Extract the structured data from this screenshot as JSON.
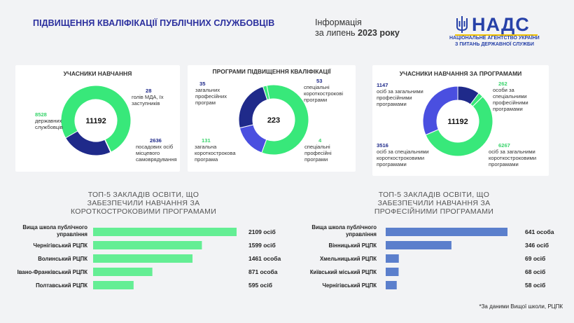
{
  "header": {
    "title": "ПІДВИЩЕННЯ КВАЛІФІКАЦІЇ ПУБЛІЧНИХ СЛУЖБОВЦІВ",
    "info_line1": "Інформація",
    "info_line2_prefix": "за липень ",
    "info_line2_bold": "2023 року",
    "logo_word": "НАДС",
    "logo_sub1": "НАЦІОНАЛЬНЕ АГЕНТСТВО УКРАЇНИ",
    "logo_sub2": "З ПИТАНЬ ДЕРЖАВНОЇ СЛУЖБИ"
  },
  "colors": {
    "dark_blue": "#1f2a8a",
    "green": "#38e87a",
    "blue": "#4a4fe0",
    "bar_green": "#64ee94",
    "bar_blue": "#5b7fcc",
    "title": "#2b2f9e"
  },
  "chart_data": [
    {
      "type": "pie",
      "title": "УЧАСНИКИ НАВЧАННЯ",
      "center": "11192",
      "series": [
        {
          "name": "державних службовців",
          "value": 8528
        },
        {
          "name": "голів МДА, їх заступників",
          "value": 28
        },
        {
          "name": "посадових осіб місцевого самоврядування",
          "value": 2636
        }
      ]
    },
    {
      "type": "pie",
      "title": "ПРОГРАМИ ПІДВИЩЕННЯ КВАЛІФІКАЦІЇ",
      "center": "223",
      "series": [
        {
          "name": "загальних професійних програм",
          "value": 35
        },
        {
          "name": "спеціальні короткострокові програми",
          "value": 53
        },
        {
          "name": "спеціальні професійні програми",
          "value": 4
        },
        {
          "name": "загальна короткострокова програма",
          "value": 131
        }
      ]
    },
    {
      "type": "pie",
      "title": "УЧАСНИКИ НАВЧАННЯ ЗА ПРОГРАМАМИ",
      "center": "11192",
      "series": [
        {
          "name": "за загальними професійними програмами",
          "value": 1147
        },
        {
          "name": "за спеціальними професійними програмами",
          "value": 262
        },
        {
          "name": "за загальними короткостроковими програмами",
          "value": 6267
        },
        {
          "name": "за спеціальними короткостроковими програмами",
          "value": 3516
        }
      ]
    },
    {
      "type": "bar",
      "title": "ТОП-5 ЗАКЛАДІВ ОСВІТИ, ЩО ЗАБЕЗПЕЧИЛИ НАВЧАННЯ ЗА КОРОТКОСТРОКОВИМИ ПРОГРАМАМИ",
      "categories": [
        "Вища школа публічного управління",
        "Чернігівський РЦПК",
        "Волинський РЦПК",
        "Івано-Франківський РЦПК",
        "Полтавський РЦПК"
      ],
      "values": [
        2109,
        1599,
        1461,
        871,
        595
      ],
      "value_labels": [
        "2109 осіб",
        "1599 осіб",
        "1461 особа",
        "871 особа",
        "595 осіб"
      ]
    },
    {
      "type": "bar",
      "title": "ТОП-5 ЗАКЛАДІВ ОСВІТИ, ЩО ЗАБЕЗПЕЧИЛИ НАВЧАННЯ ЗА ПРОФЕСІЙНИМИ ПРОГРАМАМИ",
      "categories": [
        "Вища школа публічного управління",
        "Вінницький РЦПК",
        "Хмельницький РЦПК",
        "Київський міський РЦПК",
        "Чернігівський РЦПК"
      ],
      "values": [
        641,
        346,
        69,
        68,
        58
      ],
      "value_labels": [
        "641 особа",
        "346 осіб",
        "69 осіб",
        "68 осіб",
        "58 осіб"
      ]
    }
  ],
  "donut1_labels": {
    "a_num": "8528",
    "a_text": "державних службовців",
    "b_num": "28",
    "b_text": "голів МДА, їх заступників",
    "c_num": "2636",
    "c_text": "посадових осіб місцевого самоврядування"
  },
  "donut2_labels": {
    "a_num": "35",
    "a_text": "загальних професійних програм",
    "b_num": "53",
    "b_text": "спеціальні короткострокові програми",
    "c_num": "4",
    "c_text": "спеціальні професійні програми",
    "d_num": "131",
    "d_text": "загальна короткострокова програма"
  },
  "donut3_labels": {
    "a_num": "1147",
    "a_text": "осіб за загальними професійними програмами",
    "b_num": "262",
    "b_text": "особи за спеціальними професійними програмами",
    "c_num": "6267",
    "c_text": "осіб за загальними короткостроковими програмами",
    "d_num": "3516",
    "d_text": "осіб за спеціальними короткостроковими програмами"
  },
  "footnote": "*За даними Вищої школи, РЦПК"
}
